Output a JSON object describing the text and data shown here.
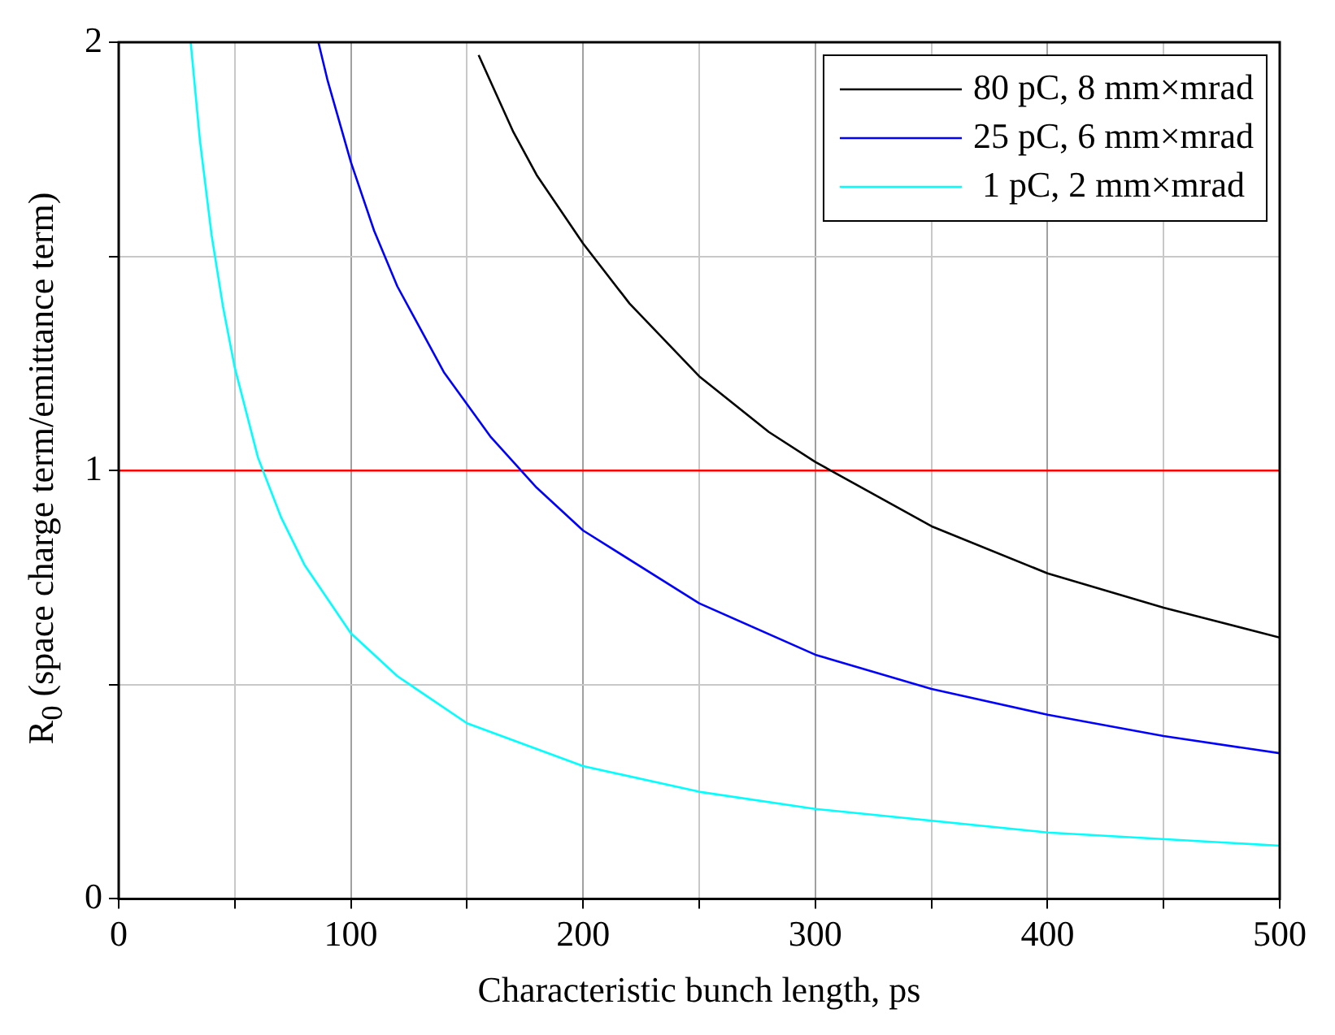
{
  "chart_data": {
    "type": "line",
    "xlabel": "Characteristic bunch length, ps",
    "ylabel": "R$_{0}$ (space charge term/emittance term)",
    "xlim": [
      0,
      500
    ],
    "xticks": [
      0,
      {
        "value": 50,
        "label": null
      },
      100,
      {
        "value": 150,
        "label": null
      },
      200,
      {
        "value": 250,
        "label": null
      },
      300,
      {
        "value": 350,
        "label": null
      },
      400,
      {
        "value": 450,
        "label": null
      },
      500
    ],
    "ylim": [
      0,
      2
    ],
    "yticks": [
      0,
      {
        "value": 0.5,
        "label": null
      },
      1,
      {
        "value": 1.5,
        "label": null
      },
      2
    ],
    "grid": true,
    "legend": "top right",
    "marker": "none",
    "line_style": "solid",
    "ref_lines": [
      {
        "axis": "y",
        "value": 1,
        "color": "#ff0000"
      }
    ],
    "series": [
      {
        "name": "80 pC, 8 mm×mrad",
        "color": "#000000",
        "x": [
          155,
          160,
          170,
          180,
          200,
          220,
          250,
          280,
          300,
          350,
          400,
          450,
          500
        ],
        "values": [
          1.97,
          1.91,
          1.79,
          1.69,
          1.53,
          1.39,
          1.22,
          1.09,
          1.02,
          0.87,
          0.76,
          0.68,
          0.61
        ]
      },
      {
        "name": "25 pC, 6 mm×mrad",
        "color": "#0000ff",
        "x": [
          86,
          90,
          100,
          110,
          120,
          140,
          160,
          180,
          200,
          250,
          300,
          350,
          400,
          450,
          500
        ],
        "values": [
          2.0,
          1.91,
          1.72,
          1.56,
          1.43,
          1.23,
          1.08,
          0.96,
          0.86,
          0.69,
          0.57,
          0.49,
          0.43,
          0.38,
          0.34
        ]
      },
      {
        "name": " 1 pC, 2 mm×mrad",
        "color": "#00ffff",
        "x": [
          31,
          35,
          40,
          45,
          50,
          60,
          70,
          80,
          100,
          120,
          150,
          200,
          250,
          300,
          400,
          500
        ],
        "values": [
          2.0,
          1.77,
          1.55,
          1.38,
          1.24,
          1.03,
          0.89,
          0.78,
          0.62,
          0.52,
          0.41,
          0.31,
          0.25,
          0.21,
          0.155,
          0.124
        ]
      }
    ]
  }
}
